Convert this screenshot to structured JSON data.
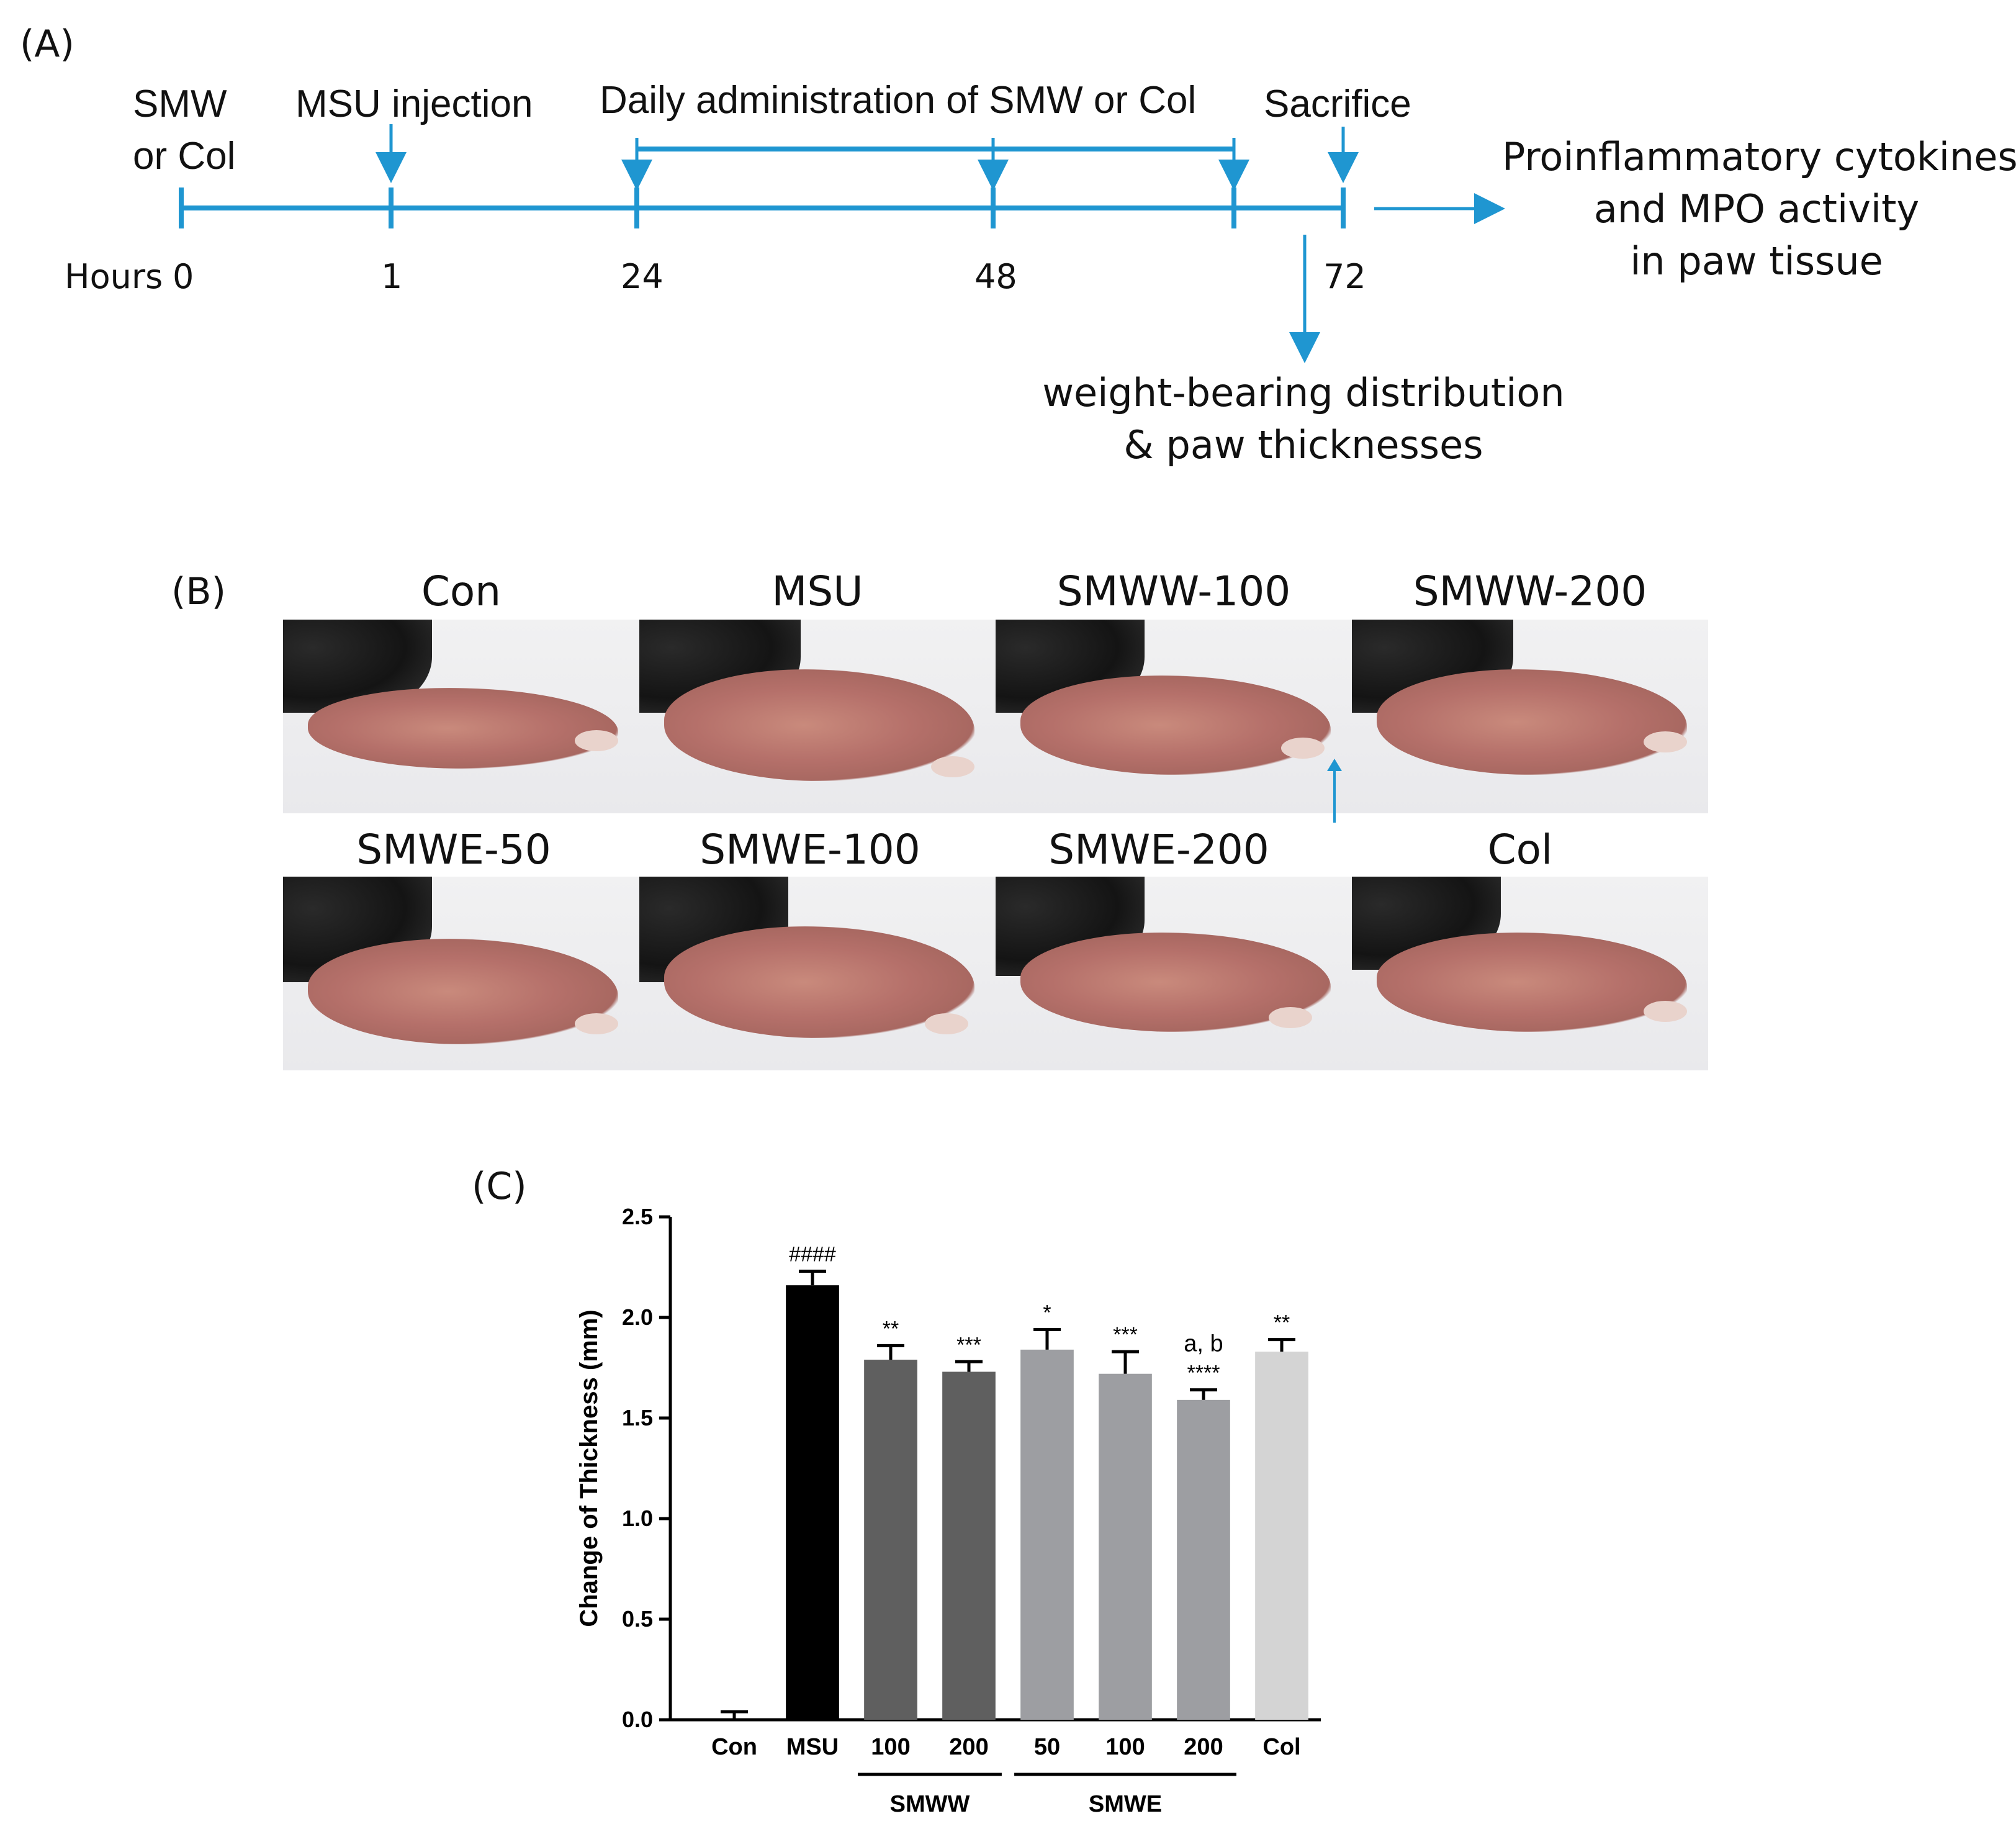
{
  "panel_a": {
    "label": "(A)",
    "events": {
      "smw_line1": "SMW",
      "smw_line2": "or Col",
      "msu": "MSU injection",
      "daily": "Daily administration of SMW or Col",
      "sacrifice": "Sacrifice"
    },
    "hours_label": "Hours",
    "ticks": [
      "0",
      "1",
      "24",
      "48",
      "72"
    ],
    "outcome_right": [
      "Proinflammatory cytokines,",
      "and MPO activity",
      "in paw tissue"
    ],
    "outcome_below": [
      "weight-bearing distribution",
      "& paw thicknesses"
    ],
    "line_color": "#1f96d1"
  },
  "panel_b": {
    "label": "(B)",
    "row1": [
      "Con",
      "MSU",
      "SMWW-100",
      "SMWW-200"
    ],
    "row2": [
      "SMWE-50",
      "SMWE-100",
      "SMWE-200",
      "Col"
    ]
  },
  "panel_c": {
    "label": "(C)"
  },
  "chart_data": {
    "type": "bar",
    "ylabel": "Change of Thickness (mm)",
    "ylim": [
      0,
      2.5
    ],
    "yticks": [
      "0.0",
      "0.5",
      "1.0",
      "1.5",
      "2.0",
      "2.5"
    ],
    "categories": [
      "Con",
      "MSU",
      "100",
      "200",
      "50",
      "100",
      "200",
      "Col"
    ],
    "values": [
      0.0,
      2.16,
      1.79,
      1.73,
      1.84,
      1.72,
      1.59,
      1.83
    ],
    "errors": [
      0.04,
      0.07,
      0.07,
      0.05,
      0.1,
      0.11,
      0.05,
      0.06
    ],
    "bar_colors": [
      "#000000",
      "#000000",
      "#5f5f5f",
      "#5f5f5f",
      "#9d9ea2",
      "#9d9ea2",
      "#9d9ea2",
      "#d4d4d4"
    ],
    "annotations": [
      "",
      "####",
      "**",
      "***",
      "*",
      "***",
      "****",
      "**"
    ],
    "extra_annotation": "a, b",
    "groups": [
      {
        "label": "SMWW",
        "from": 2,
        "to": 3
      },
      {
        "label": "SMWE",
        "from": 4,
        "to": 6
      }
    ]
  }
}
